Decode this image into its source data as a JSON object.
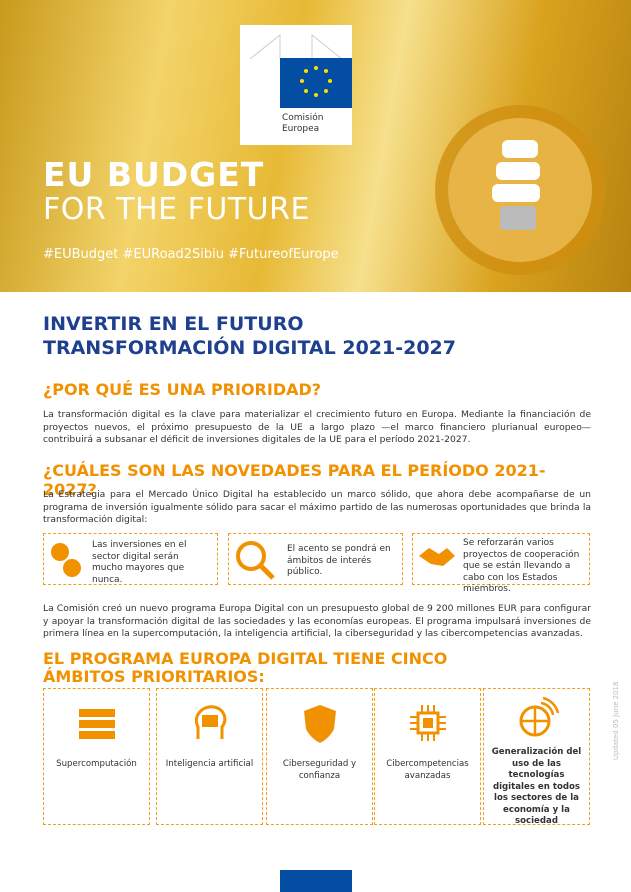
{
  "logo": {
    "lines": [
      "Comisión",
      "Europea"
    ]
  },
  "hero": {
    "title_line1": "EU BUDGET",
    "title_line2": "FOR THE FUTURE",
    "hashtags": "#EUBudget #EURoad2Sibiu #FutureofEurope"
  },
  "heading": {
    "line1": "INVERTIR EN EL FUTURO",
    "line2": "TRANSFORMACIÓN DIGITAL 2021-2027"
  },
  "section1": {
    "title": "¿POR QUÉ ES UNA PRIORIDAD?",
    "text": "La transformación digital es la clave para materializar el crecimiento futuro en Europa. Mediante la financiación de proyectos nuevos, el próximo presupuesto de la UE a largo plazo —el marco financiero plurianual europeo— contribuirá a subsanar el déficit de inversiones digitales de la UE para el período 2021-2027."
  },
  "section2": {
    "title": "¿CUÁLES SON LAS NOVEDADES PARA EL PERÍODO 2021-2027?",
    "text": "La Estrategia para el Mercado Único Digital ha establecido un marco sólido, que ahora debe acompañarse de un programa de inversión igualmente sólido para sacar el máximo partido de las numerosas oportunidades que brinda la transformación digital:",
    "boxes": [
      "Las inversiones en el sector digital serán mucho mayores que nunca.",
      "El acento se pondrá en ámbitos de interés público.",
      "Se reforzarán varios proyectos de cooperación que se están llevando a cabo con los Estados miembros."
    ],
    "text2": "La Comisión creó un nuevo programa Europa Digital con un presupuesto global de 9 200 millones EUR para configurar y apoyar la transformación digital de las sociedades y las economías europeas. El programa impulsará inversiones de primera línea en la supercomputación, la inteligencia artificial, la ciberseguridad y las cibercompetencias avanzadas."
  },
  "section3": {
    "title": "EL PROGRAMA EUROPA DIGITAL TIENE CINCO ÁMBITOS PRIORITARIOS:",
    "items": [
      "Supercomputación",
      "Inteligencia artificial",
      "Ciberseguridad y confianza",
      "Cibercompetencias avanzadas",
      "Generalización del uso de las tecnologías digitales en todos los sectores de la economía y la sociedad"
    ]
  },
  "footer": {
    "updated": "Updated 05 June 2018"
  }
}
